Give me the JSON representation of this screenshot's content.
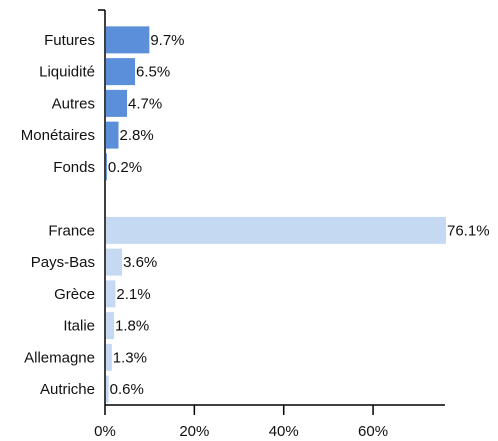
{
  "chart_data": {
    "type": "bar",
    "orientation": "horizontal",
    "categories": [
      "Futures",
      "Liquidité",
      "Autres",
      "Monétaires",
      "Fonds",
      null,
      "France",
      "Pays-Bas",
      "Grèce",
      "Italie",
      "Allemagne",
      "Autriche"
    ],
    "values": [
      9.7,
      6.5,
      4.7,
      2.8,
      0.2,
      null,
      76.1,
      3.6,
      2.1,
      1.8,
      1.3,
      0.6
    ],
    "value_labels": [
      "9.7%",
      "6.5%",
      "4.7%",
      "2.8%",
      "0.2%",
      null,
      "76.1%",
      "3.6%",
      "2.1%",
      "1.8%",
      "1.3%",
      "0.6%"
    ],
    "colors": [
      "#5b8fd9",
      "#5b8fd9",
      "#5b8fd9",
      "#5b8fd9",
      "#5b8fd9",
      null,
      "#c6d9f2",
      "#c6d9f2",
      "#c6d9f2",
      "#c6d9f2",
      "#c6d9f2",
      "#c6d9f2"
    ],
    "xlim": [
      0,
      76.1
    ],
    "xticks": [
      {
        "value": 0,
        "label": "0%"
      },
      {
        "value": 20,
        "label": "20%"
      },
      {
        "value": 40,
        "label": "40%"
      },
      {
        "value": 60,
        "label": "60%"
      }
    ],
    "grid": false
  }
}
